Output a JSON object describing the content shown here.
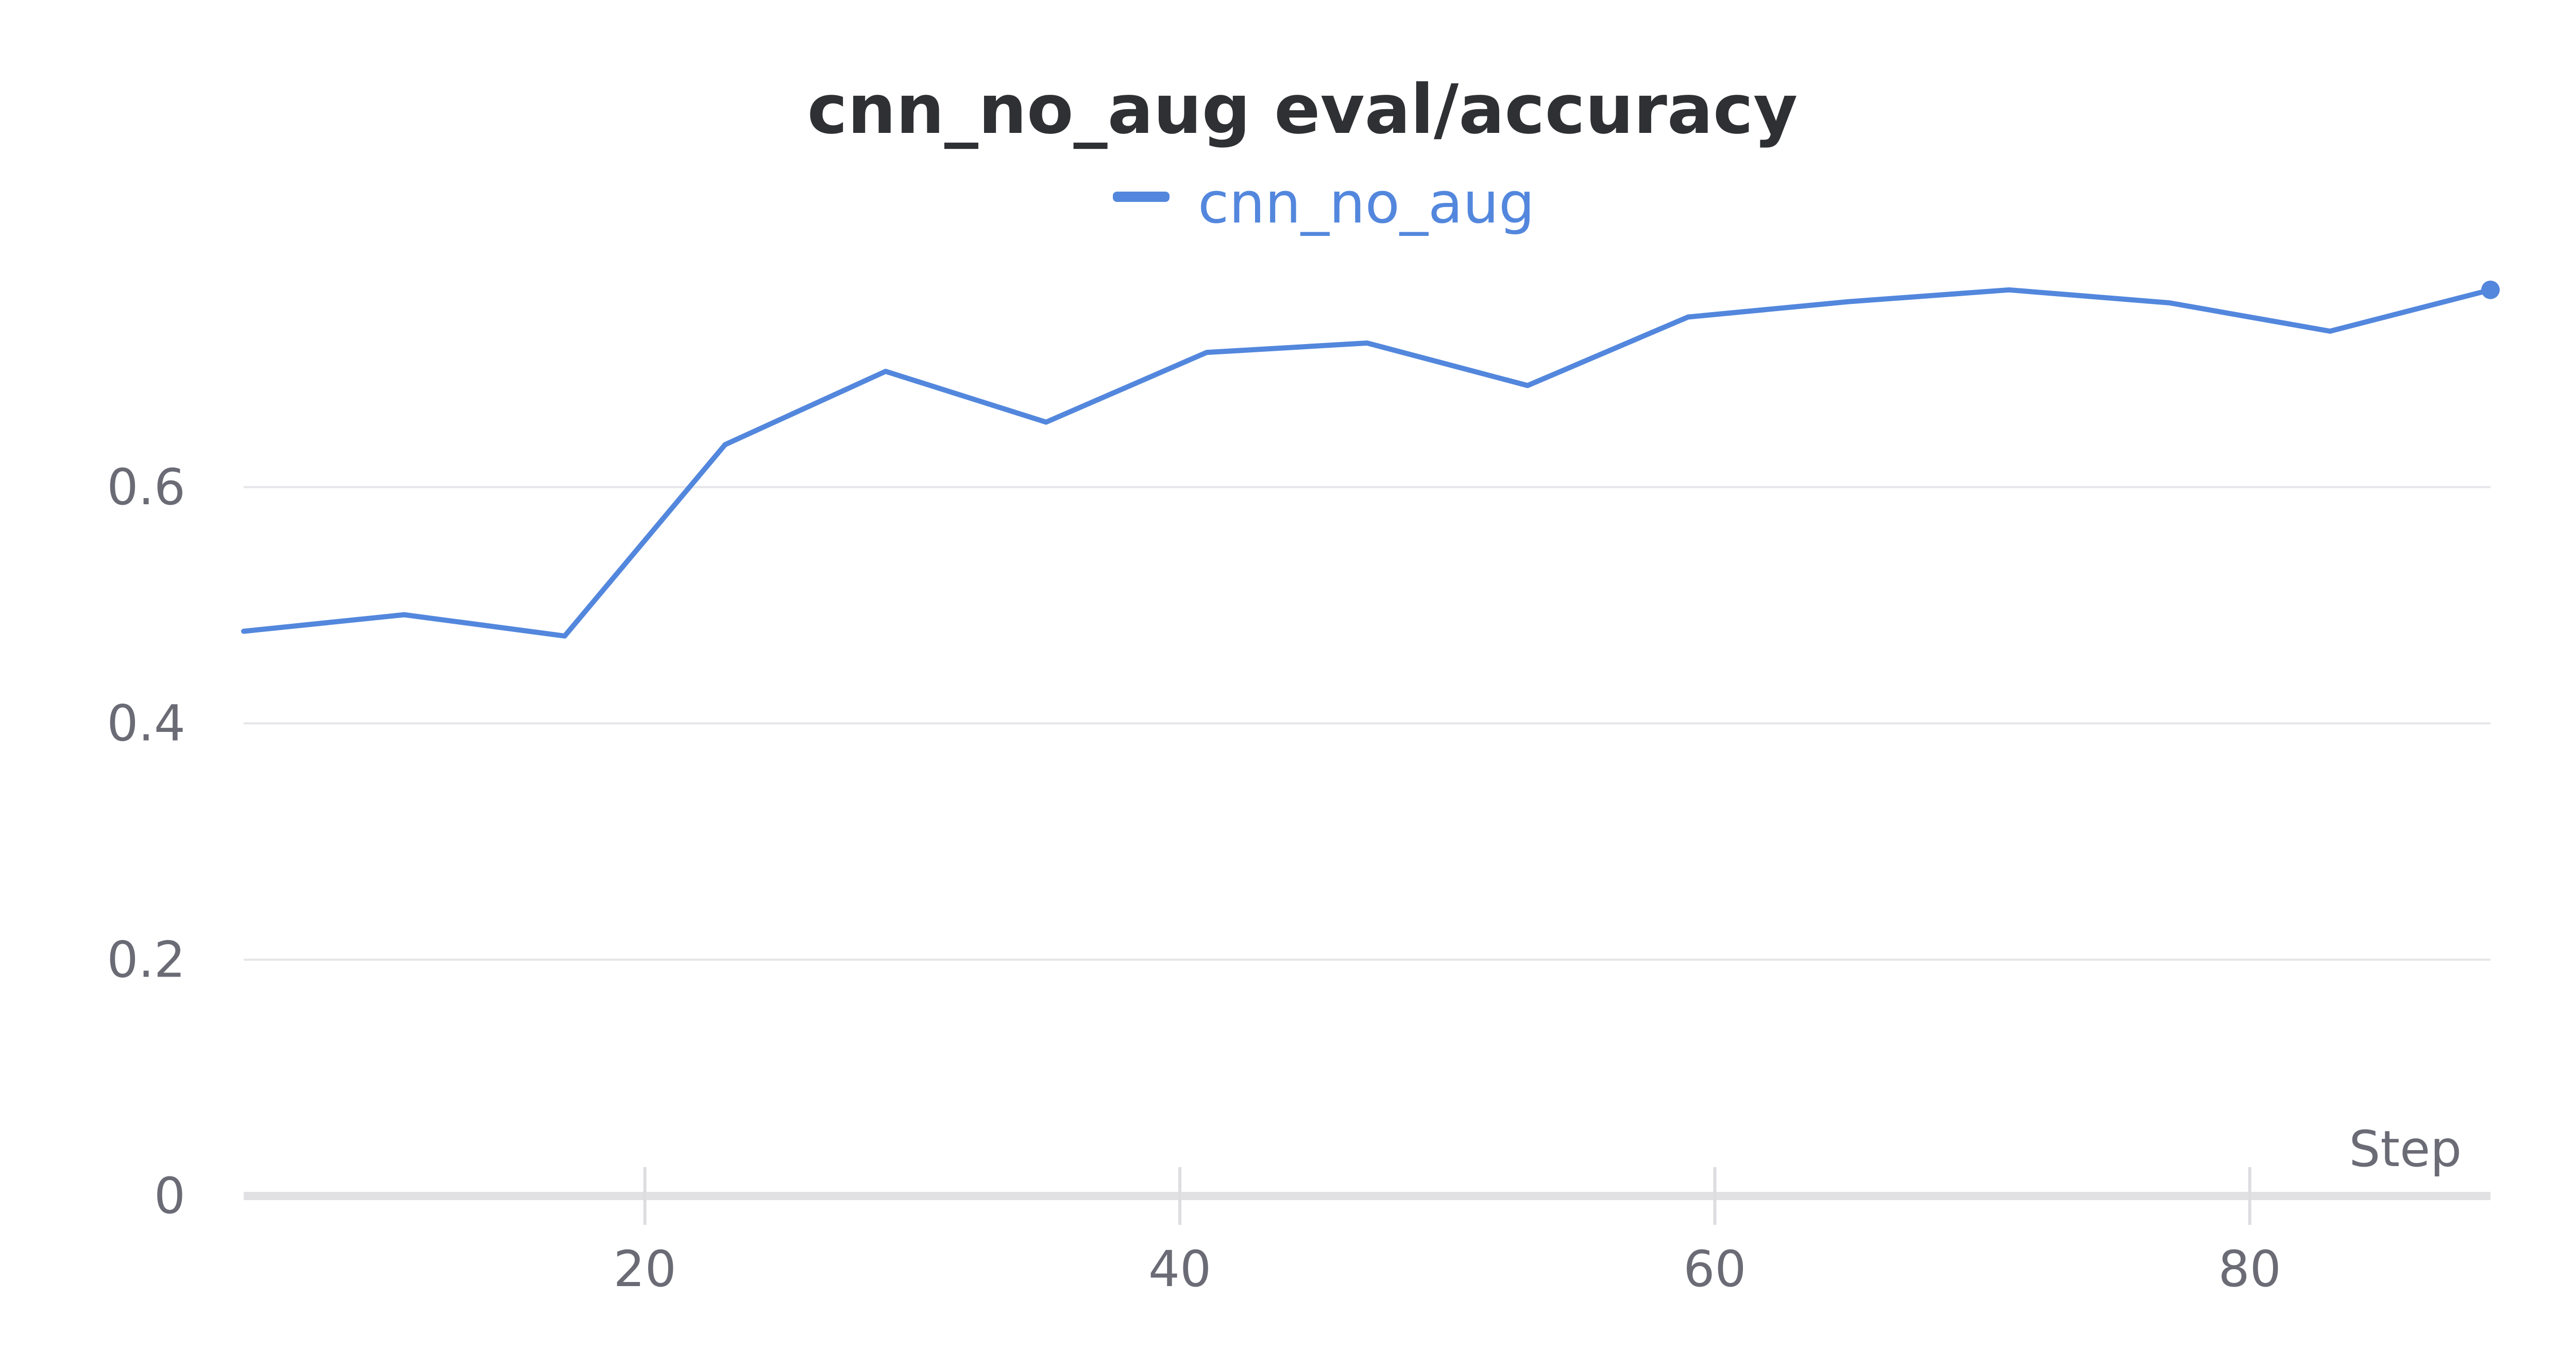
{
  "chart_data": {
    "type": "line",
    "title": "cnn_no_aug eval/accuracy",
    "xlabel": "Step",
    "ylabel": "",
    "xlim": [
      5,
      89
    ],
    "ylim": [
      0,
      0.79
    ],
    "x_ticks": [
      20,
      40,
      60,
      80
    ],
    "y_ticks": [
      0,
      0.2,
      0.4,
      0.6
    ],
    "x_tick_labels": [
      "20",
      "40",
      "60",
      "80"
    ],
    "y_tick_labels": [
      "0",
      "0.2",
      "0.4",
      "0.6"
    ],
    "grid": true,
    "legend": "top-center",
    "series": [
      {
        "name": "cnn_no_aug",
        "color": "#5387dd",
        "x": [
          5,
          11,
          17,
          23,
          29,
          35,
          41,
          47,
          53,
          59,
          65,
          71,
          77,
          83,
          89
        ],
        "y": [
          0.478,
          0.492,
          0.474,
          0.636,
          0.698,
          0.655,
          0.714,
          0.722,
          0.686,
          0.744,
          0.757,
          0.767,
          0.756,
          0.732,
          0.767
        ]
      }
    ]
  }
}
